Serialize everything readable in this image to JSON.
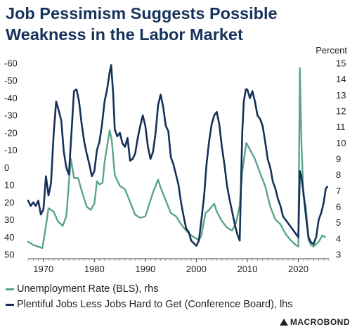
{
  "header": {
    "title_line1": "Job Pessimism Suggests Possible",
    "title_line2": "Weakness in the Labor Market"
  },
  "legend": {
    "items": [
      {
        "label": "Unemployment Rate (BLS), rhs",
        "color": "#5aa48c"
      },
      {
        "label": "Plentiful Jobs Less Jobs Hard to Get (Conference Board), lhs",
        "color": "#16305a"
      }
    ]
  },
  "brand": {
    "label": "MACROBOND"
  },
  "chart_data": {
    "type": "line",
    "title": "Job Pessimism Suggests Possible Weakness in the Labor Market",
    "right_axis_unit": "Percent",
    "left_axis": {
      "min": -60,
      "max": 50,
      "inverted": true,
      "ticks": [
        "-60",
        "-50",
        "-40",
        "-30",
        "-20",
        "-10",
        "0",
        "10",
        "20",
        "30",
        "40",
        "50"
      ]
    },
    "right_axis": {
      "min": 3,
      "max": 15,
      "ticks": [
        "3",
        "4",
        "5",
        "6",
        "7",
        "8",
        "9",
        "10",
        "11",
        "12",
        "13",
        "14",
        "15"
      ]
    },
    "x_axis": {
      "min": 1967,
      "max": 2026,
      "ticks": [
        "1970",
        "1980",
        "1990",
        "2000",
        "2010",
        "2020"
      ]
    },
    "grid": false,
    "legend_position": "bottom",
    "series": [
      {
        "name": "Unemployment Rate (BLS), rhs",
        "axis": "right",
        "color": "#5aa48c",
        "points": [
          [
            1967.0,
            3.8
          ],
          [
            1968.0,
            3.6
          ],
          [
            1969.0,
            3.5
          ],
          [
            1969.8,
            3.4
          ],
          [
            1970.5,
            4.8
          ],
          [
            1971.0,
            5.9
          ],
          [
            1972.0,
            5.7
          ],
          [
            1972.8,
            5.1
          ],
          [
            1973.8,
            4.8
          ],
          [
            1974.5,
            5.4
          ],
          [
            1975.0,
            7.5
          ],
          [
            1975.4,
            9.0
          ],
          [
            1976.0,
            7.8
          ],
          [
            1976.8,
            7.8
          ],
          [
            1977.5,
            7.0
          ],
          [
            1978.5,
            6.0
          ],
          [
            1979.3,
            5.8
          ],
          [
            1980.0,
            6.2
          ],
          [
            1980.5,
            7.6
          ],
          [
            1981.0,
            7.4
          ],
          [
            1981.6,
            7.5
          ],
          [
            1982.0,
            8.8
          ],
          [
            1982.5,
            9.8
          ],
          [
            1983.0,
            10.8
          ],
          [
            1983.4,
            10.2
          ],
          [
            1984.0,
            8.0
          ],
          [
            1985.0,
            7.3
          ],
          [
            1986.0,
            7.1
          ],
          [
            1987.0,
            6.3
          ],
          [
            1988.0,
            5.5
          ],
          [
            1989.0,
            5.3
          ],
          [
            1990.0,
            5.4
          ],
          [
            1990.8,
            6.2
          ],
          [
            1991.5,
            6.9
          ],
          [
            1992.5,
            7.7
          ],
          [
            1993.0,
            7.2
          ],
          [
            1994.0,
            6.4
          ],
          [
            1995.0,
            5.6
          ],
          [
            1996.0,
            5.4
          ],
          [
            1997.0,
            4.9
          ],
          [
            1998.0,
            4.5
          ],
          [
            1999.0,
            4.2
          ],
          [
            2000.0,
            4.0
          ],
          [
            2000.5,
            3.9
          ],
          [
            2001.0,
            4.2
          ],
          [
            2001.8,
            5.6
          ],
          [
            2002.5,
            5.8
          ],
          [
            2003.5,
            6.2
          ],
          [
            2004.0,
            5.7
          ],
          [
            2005.0,
            5.1
          ],
          [
            2006.0,
            4.7
          ],
          [
            2007.0,
            4.5
          ],
          [
            2007.8,
            5.0
          ],
          [
            2008.5,
            6.1
          ],
          [
            2009.0,
            8.2
          ],
          [
            2009.8,
            10.0
          ],
          [
            2010.5,
            9.6
          ],
          [
            2011.5,
            9.0
          ],
          [
            2012.5,
            8.1
          ],
          [
            2013.5,
            7.3
          ],
          [
            2014.5,
            6.0
          ],
          [
            2015.5,
            5.2
          ],
          [
            2016.5,
            4.9
          ],
          [
            2017.5,
            4.3
          ],
          [
            2018.5,
            3.9
          ],
          [
            2019.5,
            3.6
          ],
          [
            2020.0,
            3.5
          ],
          [
            2020.3,
            14.7
          ],
          [
            2020.6,
            10.2
          ],
          [
            2021.0,
            6.7
          ],
          [
            2021.5,
            5.9
          ],
          [
            2022.0,
            3.9
          ],
          [
            2022.5,
            3.6
          ],
          [
            2023.0,
            3.5
          ],
          [
            2024.0,
            3.8
          ],
          [
            2024.7,
            4.2
          ],
          [
            2025.3,
            4.1
          ]
        ]
      },
      {
        "name": "Plentiful Jobs Less Jobs Hard to Get (Conference Board), lhs",
        "axis": "left",
        "color": "#16305a",
        "points": [
          [
            1967.0,
            19
          ],
          [
            1967.5,
            22
          ],
          [
            1968.0,
            20
          ],
          [
            1968.5,
            22
          ],
          [
            1969.0,
            19
          ],
          [
            1969.5,
            27
          ],
          [
            1970.0,
            24
          ],
          [
            1970.5,
            5
          ],
          [
            1971.0,
            16
          ],
          [
            1971.5,
            9
          ],
          [
            1972.0,
            -19
          ],
          [
            1972.5,
            -38
          ],
          [
            1973.0,
            -33
          ],
          [
            1973.5,
            -27
          ],
          [
            1974.0,
            -9
          ],
          [
            1974.5,
            0
          ],
          [
            1975.0,
            4
          ],
          [
            1975.5,
            -20
          ],
          [
            1976.0,
            -44
          ],
          [
            1976.5,
            -45
          ],
          [
            1977.0,
            -38
          ],
          [
            1977.5,
            -25
          ],
          [
            1978.0,
            -15
          ],
          [
            1978.5,
            -8
          ],
          [
            1979.0,
            -2
          ],
          [
            1979.5,
            5
          ],
          [
            1980.0,
            2
          ],
          [
            1980.5,
            -10
          ],
          [
            1981.0,
            -15
          ],
          [
            1981.5,
            -25
          ],
          [
            1982.0,
            -38
          ],
          [
            1982.5,
            -45
          ],
          [
            1983.0,
            -55
          ],
          [
            1983.3,
            -59
          ],
          [
            1983.7,
            -42
          ],
          [
            1984.0,
            -22
          ],
          [
            1984.5,
            -18
          ],
          [
            1985.0,
            -20
          ],
          [
            1985.5,
            -14
          ],
          [
            1986.0,
            -12
          ],
          [
            1986.5,
            -17
          ],
          [
            1987.0,
            -4
          ],
          [
            1987.5,
            -5
          ],
          [
            1988.0,
            -8
          ],
          [
            1988.5,
            -17
          ],
          [
            1989.0,
            -24
          ],
          [
            1989.5,
            -30
          ],
          [
            1990.0,
            -24
          ],
          [
            1990.5,
            -12
          ],
          [
            1991.0,
            -5
          ],
          [
            1991.5,
            -9
          ],
          [
            1992.0,
            -20
          ],
          [
            1992.5,
            -36
          ],
          [
            1993.0,
            -42
          ],
          [
            1993.5,
            -35
          ],
          [
            1994.0,
            -24
          ],
          [
            1994.5,
            -21
          ],
          [
            1995.0,
            -6
          ],
          [
            1995.5,
            -2
          ],
          [
            1996.0,
            4
          ],
          [
            1996.5,
            10
          ],
          [
            1997.0,
            20
          ],
          [
            1997.5,
            28
          ],
          [
            1998.0,
            35
          ],
          [
            1998.5,
            37
          ],
          [
            1999.0,
            42
          ],
          [
            2000.0,
            45
          ],
          [
            2000.5,
            42
          ],
          [
            2001.0,
            30
          ],
          [
            2001.5,
            17
          ],
          [
            2002.0,
            -2
          ],
          [
            2002.5,
            -15
          ],
          [
            2003.0,
            -25
          ],
          [
            2003.5,
            -30
          ],
          [
            2004.0,
            -32
          ],
          [
            2004.5,
            -25
          ],
          [
            2005.0,
            -12
          ],
          [
            2005.5,
            -2
          ],
          [
            2006.0,
            10
          ],
          [
            2006.5,
            18
          ],
          [
            2007.0,
            25
          ],
          [
            2007.5,
            32
          ],
          [
            2008.0,
            38
          ],
          [
            2008.5,
            42
          ],
          [
            2009.0,
            -20
          ],
          [
            2009.3,
            -38
          ],
          [
            2009.7,
            -45
          ],
          [
            2010.0,
            -45
          ],
          [
            2010.5,
            -40
          ],
          [
            2011.0,
            -44
          ],
          [
            2011.5,
            -38
          ],
          [
            2012.0,
            -30
          ],
          [
            2012.5,
            -28
          ],
          [
            2013.0,
            -24
          ],
          [
            2013.5,
            -15
          ],
          [
            2014.0,
            -5
          ],
          [
            2014.5,
            0
          ],
          [
            2015.0,
            8
          ],
          [
            2015.5,
            12
          ],
          [
            2016.0,
            18
          ],
          [
            2016.5,
            22
          ],
          [
            2017.0,
            28
          ],
          [
            2017.5,
            30
          ],
          [
            2018.0,
            32
          ],
          [
            2018.5,
            34
          ],
          [
            2019.0,
            36
          ],
          [
            2019.5,
            38
          ],
          [
            2020.0,
            40
          ],
          [
            2020.3,
            2
          ],
          [
            2020.6,
            5
          ],
          [
            2021.0,
            14
          ],
          [
            2021.5,
            28
          ],
          [
            2022.0,
            40
          ],
          [
            2022.5,
            43
          ],
          [
            2023.0,
            44
          ],
          [
            2023.5,
            40
          ],
          [
            2024.0,
            30
          ],
          [
            2024.5,
            26
          ],
          [
            2025.0,
            20
          ],
          [
            2025.4,
            12
          ],
          [
            2025.7,
            11
          ]
        ]
      }
    ]
  }
}
